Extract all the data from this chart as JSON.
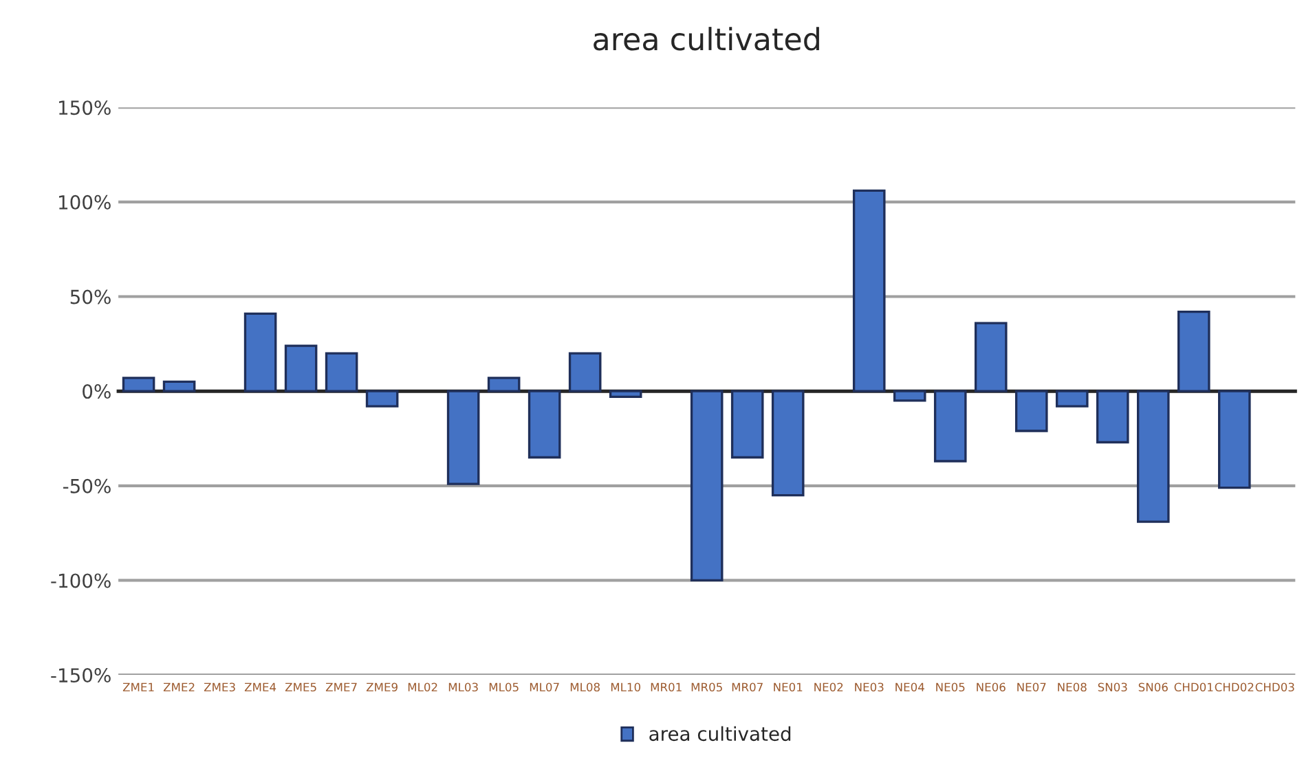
{
  "chart_data": {
    "type": "bar",
    "title": "area cultivated",
    "categories": [
      "ZME1",
      "ZME2",
      "ZME3",
      "ZME4",
      "ZME5",
      "ZME7",
      "ZME9",
      "ML02",
      "ML03",
      "ML05",
      "ML07",
      "ML08",
      "ML10",
      "MR01",
      "MR05",
      "MR07",
      "NE01",
      "NE02",
      "NE03",
      "NE04",
      "NE05",
      "NE06",
      "NE07",
      "NE08",
      "SN03",
      "SN06",
      "CHD01",
      "CHD02",
      "CHD03"
    ],
    "series": [
      {
        "name": "area cultivated",
        "color": "#4472c4",
        "values": [
          7,
          5,
          0,
          41,
          24,
          20,
          -8,
          0,
          -49,
          7,
          -35,
          20,
          -3,
          0,
          -100,
          -35,
          -55,
          0,
          106,
          -5,
          -37,
          36,
          -21,
          -8,
          -27,
          -69,
          42,
          -51,
          0
        ]
      }
    ],
    "ylim": [
      -150,
      150
    ],
    "yticks": [
      {
        "value": -150,
        "label": "-150%"
      },
      {
        "value": -100,
        "label": "-100%"
      },
      {
        "value": -50,
        "label": "-50%"
      },
      {
        "value": 0,
        "label": "0%"
      },
      {
        "value": 50,
        "label": "50%"
      },
      {
        "value": 100,
        "label": "100%"
      },
      {
        "value": 150,
        "label": "150%"
      }
    ],
    "grid": "y",
    "legend": "bottom"
  }
}
